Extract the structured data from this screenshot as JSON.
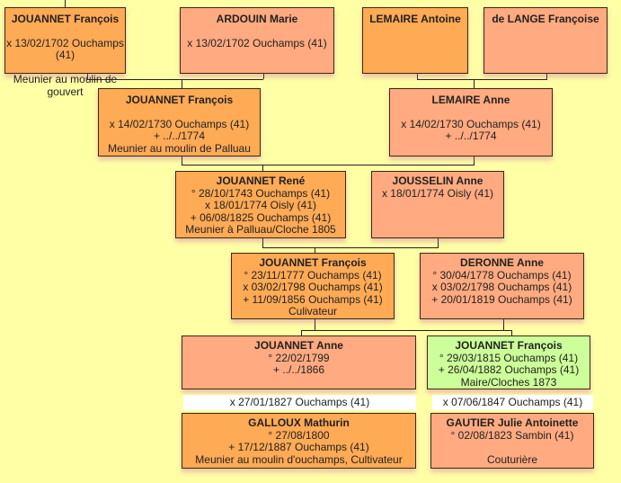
{
  "colors": {
    "background": "#ffffa6",
    "male": "#ffaa55",
    "female": "#ffaa80",
    "highlight": "#ccff99"
  },
  "people": [
    {
      "name": "JOUANNET François",
      "lines": [
        "x 13/02/1702 Ouchamps (41)",
        "",
        "Meunier au moulin de gouvert"
      ]
    },
    {
      "name": "ARDOUIN Marie",
      "lines": [
        "x 13/02/1702 Ouchamps (41)"
      ]
    },
    {
      "name": "LEMAIRE Antoine",
      "lines": []
    },
    {
      "name": "de LANGE Françoise",
      "lines": []
    },
    {
      "name": "JOUANNET François",
      "lines": [
        "x 14/02/1730 Ouchamps (41)",
        "+ ../../1774",
        "Meunier au moulin de Palluau"
      ]
    },
    {
      "name": "LEMAIRE Anne",
      "lines": [
        "x 14/02/1730 Ouchamps (41)",
        "+ ../../1774"
      ]
    },
    {
      "name": "JOUANNET René",
      "lines": [
        "° 28/10/1743 Ouchamps (41)",
        "x 18/01/1774 Oisly (41)",
        "+ 06/08/1825 Ouchamps (41)",
        "Meunier à Palluau/Cloche 1805"
      ]
    },
    {
      "name": "JOUSSELIN Anne",
      "lines": [
        "x 18/01/1774 Oisly (41)"
      ]
    },
    {
      "name": "JOUANNET François",
      "lines": [
        "° 23/11/1777 Ouchamps (41)",
        "x 03/02/1798 Ouchamps (41)",
        "+ 11/09/1856 Ouchamps (41)",
        "Culivateur"
      ]
    },
    {
      "name": "DERONNE Anne",
      "lines": [
        "° 30/04/1778 Ouchamps (41)",
        "x 03/02/1798 Ouchamps (41)",
        "+ 20/01/1819 Ouchamps (41)"
      ]
    },
    {
      "name": "JOUANNET Anne",
      "lines": [
        "° 22/02/1799",
        "+ ../../1866"
      ]
    },
    {
      "name": "JOUANNET François",
      "lines": [
        "° 29/03/1815 Ouchamps (41)",
        "+ 26/04/1882 Ouchamps (41)",
        "Maire/Cloches 1873"
      ]
    },
    {
      "name": "GALLOUX Mathurin",
      "lines": [
        "° 27/08/1800",
        "+ 17/12/1887 Ouchamps (41)",
        "Meunier au moulin d'ouchamps, Cultivateur"
      ]
    },
    {
      "name": "GAUTIER Julie Antoinette",
      "lines": [
        "° 02/08/1823 Sambin (41)",
        "",
        "Couturière"
      ]
    }
  ],
  "marriages": [
    "x 27/01/1827 Ouchamps (41)",
    "x 07/06/1847 Ouchamps (41)"
  ]
}
